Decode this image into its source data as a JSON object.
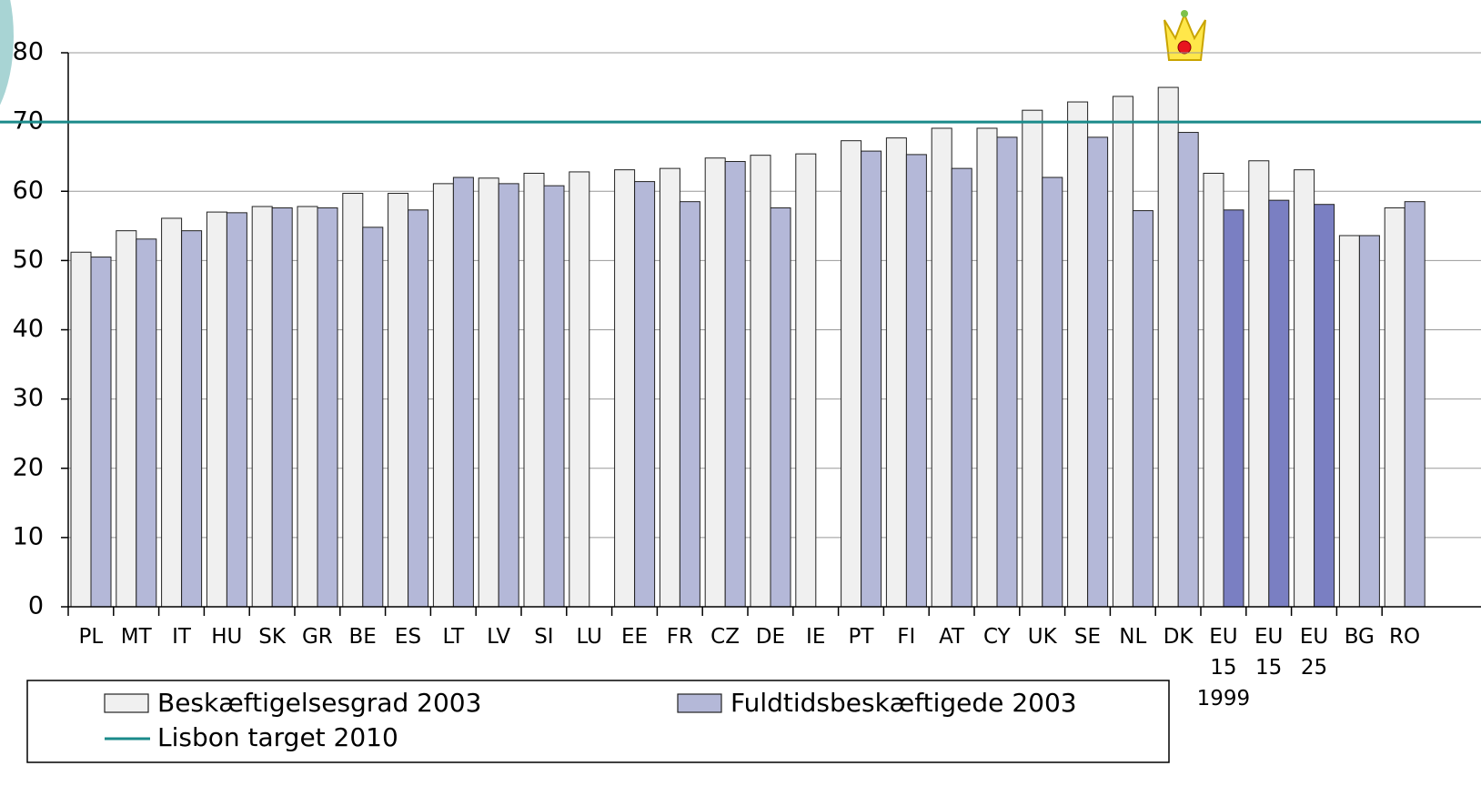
{
  "chart_data": {
    "type": "bar",
    "categories": [
      "PL",
      "MT",
      "IT",
      "HU",
      "SK",
      "GR",
      "BE",
      "ES",
      "LT",
      "LV",
      "SI",
      "LU",
      "EE",
      "FR",
      "CZ",
      "DE",
      "IE",
      "PT",
      "FI",
      "AT",
      "CY",
      "UK",
      "SE",
      "NL",
      "DK",
      "EU 15 1999",
      "EU 15",
      "EU 25",
      "BG",
      "RO"
    ],
    "series": [
      {
        "name": "Beskæftigelsesgrad 2003",
        "color": "#f0f0f0",
        "values": [
          51.2,
          54.3,
          56.1,
          57.0,
          57.8,
          57.8,
          59.7,
          59.7,
          61.1,
          61.9,
          62.6,
          62.8,
          63.1,
          63.3,
          64.8,
          65.2,
          65.4,
          67.3,
          67.7,
          69.1,
          69.1,
          71.7,
          72.9,
          73.7,
          75.0,
          62.6,
          64.4,
          63.1,
          53.6,
          57.6
        ]
      },
      {
        "name": "Fuldtidsbeskæftigede 2003",
        "color": "#b4b8d8",
        "colors": [
          "#b4b8d8",
          "#b4b8d8",
          "#b4b8d8",
          "#b4b8d8",
          "#b4b8d8",
          "#b4b8d8",
          "#b4b8d8",
          "#b4b8d8",
          "#b4b8d8",
          "#b4b8d8",
          "#b4b8d8",
          "#b4b8d8",
          "#b4b8d8",
          "#b4b8d8",
          "#b4b8d8",
          "#b4b8d8",
          "#b4b8d8",
          "#b4b8d8",
          "#b4b8d8",
          "#b4b8d8",
          "#b4b8d8",
          "#b4b8d8",
          "#b4b8d8",
          "#b4b8d8",
          "#b4b8d8",
          "#7a7fc2",
          "#7a7fc2",
          "#7a7fc2",
          "#b4b8d8",
          "#b4b8d8"
        ],
        "values": [
          50.5,
          53.1,
          54.3,
          56.9,
          57.6,
          57.6,
          54.8,
          57.3,
          62.0,
          61.1,
          60.8,
          null,
          61.4,
          58.5,
          64.3,
          57.6,
          null,
          65.8,
          65.3,
          63.3,
          67.8,
          62.0,
          67.8,
          57.2,
          68.5,
          57.3,
          58.7,
          58.1,
          53.6,
          58.5
        ]
      }
    ],
    "reference_line": {
      "name": "Lisbon target 2010",
      "value": 70,
      "color": "#1a8a8a"
    },
    "ylim": [
      0,
      80
    ],
    "yticks": [
      0,
      10,
      20,
      30,
      40,
      50,
      60,
      70,
      80
    ],
    "grid": true
  }
}
